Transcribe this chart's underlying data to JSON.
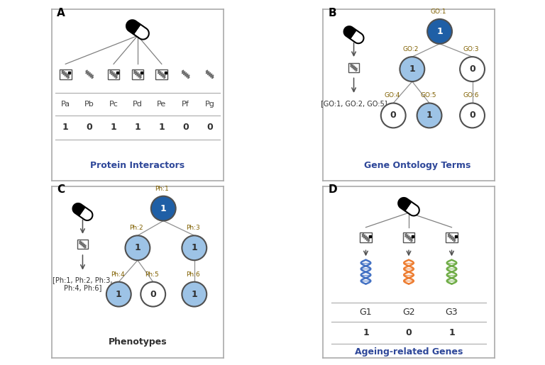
{
  "panel_A": {
    "label": "A",
    "subtitle": "Protein Interactors",
    "proteins": [
      "Pa",
      "Pb",
      "Pc",
      "Pd",
      "Pe",
      "Pf",
      "Pg"
    ],
    "values": [
      "1",
      "0",
      "1",
      "1",
      "1",
      "0",
      "0"
    ],
    "connected": [
      0,
      2,
      3,
      4
    ]
  },
  "panel_B": {
    "label": "B",
    "subtitle": "Gene Ontology Terms",
    "nodes": [
      "GO:1",
      "GO:2",
      "GO:3",
      "GO:4",
      "GO:5",
      "GO:6"
    ],
    "values": [
      "1",
      "1",
      "0",
      "0",
      "1",
      "0"
    ],
    "node_colors": [
      "dark_blue",
      "light_blue",
      "white",
      "white",
      "light_blue",
      "white"
    ],
    "list_text": "[GO:1, GO:2, GO:5]"
  },
  "panel_C": {
    "label": "C",
    "subtitle": "Phenotypes",
    "nodes": [
      "Ph:1",
      "Ph:2",
      "Ph:3",
      "Ph:4",
      "Ph:5",
      "Ph:6"
    ],
    "values": [
      "1",
      "1",
      "1",
      "1",
      "0",
      "1"
    ],
    "node_colors": [
      "dark_blue",
      "light_blue",
      "light_blue",
      "light_blue",
      "white",
      "light_blue"
    ],
    "list_text": "[Ph:1, Ph:2, Ph:3,\nPh:4, Ph:6]"
  },
  "panel_D": {
    "label": "D",
    "subtitle": "Ageing-related Genes",
    "genes": [
      "G1",
      "G2",
      "G3"
    ],
    "values": [
      "1",
      "0",
      "1"
    ],
    "dna_colors": [
      "#4472c4",
      "#ed7d31",
      "#70ad47"
    ]
  },
  "colors": {
    "dark_blue_node": "#1f5fa6",
    "light_blue": "#9dc3e6",
    "white": "#ffffff",
    "panel_border": "#aaaaaa",
    "label_color": "#808080",
    "subtitle_blue": "#2e4799",
    "brown_text": "#806000",
    "line_color": "#909090"
  }
}
